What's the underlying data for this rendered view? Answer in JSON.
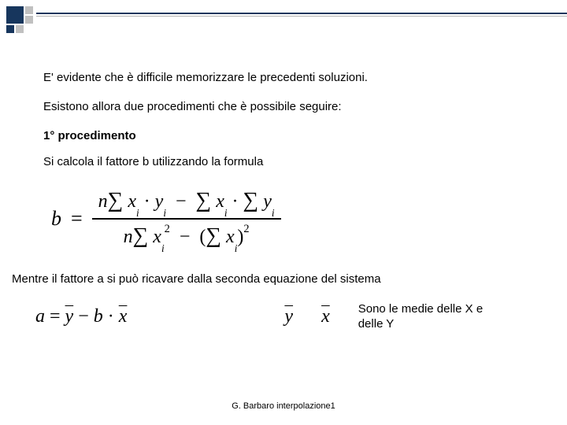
{
  "para1": "E' evidente che è difficile memorizzare le precedenti soluzioni.",
  "para2": "Esistono allora due procedimenti che è possibile seguire:",
  "heading1": "1° procedimento",
  "para3": "Si calcola il fattore b utilizzando la formula",
  "formula_b": {
    "lhs": "b",
    "eq": "=",
    "num_text": "n ∑ xᵢ · yᵢ − ∑ xᵢ · ∑ yᵢ",
    "den_text": "n ∑ xᵢ² − (∑ xᵢ)²"
  },
  "para4": "Mentre il fattore a si può ricavare dalla seconda equazione del sistema",
  "formula_a": "a = ȳ − b · x̄",
  "sym_y": "ȳ",
  "sym_x": "x̄",
  "note": "Sono le medie delle X e delle Y",
  "footer": "G. Barbaro interpolazione1",
  "colors": {
    "navy": "#17365d",
    "gray": "#c0c0c0",
    "text": "#000000",
    "bg": "#ffffff"
  }
}
